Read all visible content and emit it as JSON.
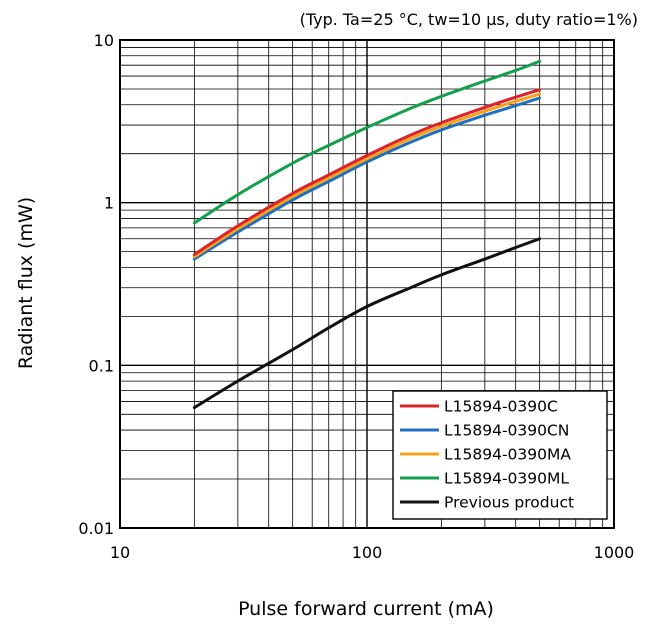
{
  "chart_data": {
    "type": "line",
    "subtitle": "(Typ. Ta=25 °C, tw=10 μs, duty ratio=1%)",
    "xlabel": "Pulse forward current (mA)",
    "ylabel": "Radiant flux (mW)",
    "xscale": "log",
    "yscale": "log",
    "xlim": [
      10,
      1000
    ],
    "ylim": [
      0.01,
      10
    ],
    "xticks": [
      {
        "value": 10,
        "label": "10"
      },
      {
        "value": 100,
        "label": "100"
      },
      {
        "value": 1000,
        "label": "1000"
      }
    ],
    "yticks": [
      {
        "value": 0.01,
        "label": "0.01"
      },
      {
        "value": 0.1,
        "label": "0.1"
      },
      {
        "value": 1,
        "label": "1"
      },
      {
        "value": 10,
        "label": "10"
      }
    ],
    "grid": true,
    "legend_position": "bottom-right",
    "x": [
      20,
      30,
      50,
      70,
      100,
      150,
      200,
      300,
      400,
      500
    ],
    "series": [
      {
        "name": "L15894-0390C",
        "color": "#e0202a",
        "values": [
          0.48,
          0.72,
          1.14,
          1.48,
          1.95,
          2.6,
          3.1,
          3.85,
          4.45,
          4.95
        ]
      },
      {
        "name": "L15894-0390CN",
        "color": "#1f6fc0",
        "values": [
          0.45,
          0.66,
          1.04,
          1.35,
          1.78,
          2.35,
          2.8,
          3.45,
          3.95,
          4.4
        ]
      },
      {
        "name": "L15894-0390MA",
        "color": "#f5a21b",
        "values": [
          0.465,
          0.69,
          1.09,
          1.42,
          1.86,
          2.48,
          2.95,
          3.65,
          4.2,
          4.65
        ]
      },
      {
        "name": "L15894-0390ML",
        "color": "#14a04a",
        "values": [
          0.75,
          1.12,
          1.75,
          2.25,
          2.9,
          3.8,
          4.5,
          5.6,
          6.5,
          7.4
        ]
      },
      {
        "name": "Previous product",
        "color": "#111111",
        "values": [
          0.055,
          0.08,
          0.125,
          0.17,
          0.23,
          0.3,
          0.36,
          0.45,
          0.53,
          0.6
        ]
      }
    ]
  }
}
